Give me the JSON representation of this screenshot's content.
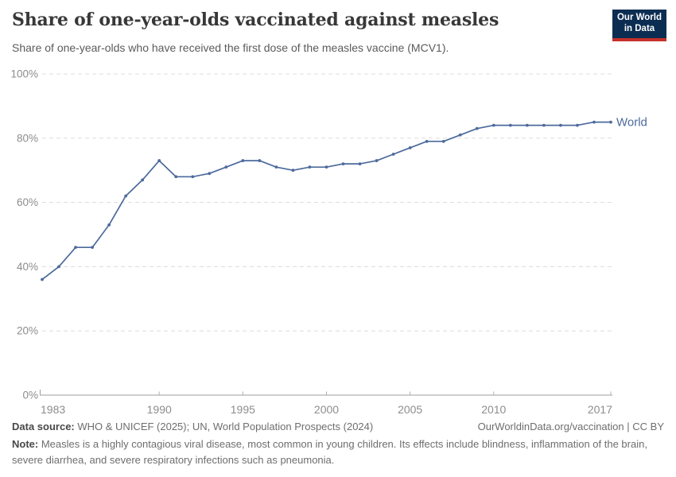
{
  "header": {
    "logo": {
      "line1": "Our World",
      "line2": "in Data",
      "bg_color": "#0c2d52",
      "bar_color": "#c4302b"
    }
  },
  "chart_data": {
    "type": "line",
    "title": "Share of one-year-olds vaccinated against measles",
    "subtitle": "Share of one-year-olds who have received the first dose of the measles vaccine (MCV1).",
    "x": [
      1983,
      1984,
      1985,
      1986,
      1987,
      1988,
      1989,
      1990,
      1991,
      1992,
      1993,
      1994,
      1995,
      1996,
      1997,
      1998,
      1999,
      2000,
      2001,
      2002,
      2003,
      2004,
      2005,
      2006,
      2007,
      2008,
      2009,
      2010,
      2011,
      2012,
      2013,
      2014,
      2015,
      2016,
      2017
    ],
    "series": [
      {
        "name": "World",
        "values": [
          36,
          40,
          46,
          46,
          53,
          62,
          67,
          73,
          68,
          68,
          69,
          71,
          73,
          73,
          71,
          70,
          71,
          71,
          72,
          72,
          73,
          75,
          77,
          79,
          79,
          81,
          83,
          84,
          84,
          84,
          84,
          84,
          84,
          85,
          85
        ]
      }
    ],
    "x_ticks": [
      1983,
      1990,
      1995,
      2000,
      2005,
      2010,
      2017
    ],
    "y_ticks": [
      0,
      20,
      40,
      60,
      80,
      100
    ],
    "y_tick_suffix": "%",
    "xlim": [
      1983,
      2017
    ],
    "ylim": [
      0,
      100
    ],
    "grid": "horizontal-dashed",
    "legend_position": "end-of-line-label",
    "line_color": "#4C6A9C",
    "axis_label_color": "#8d8d8d"
  },
  "footer": {
    "data_source_label": "Data source:",
    "data_source": "WHO & UNICEF (2025); UN, World Population Prospects (2024)",
    "link": "OurWorldinData.org/vaccination",
    "separator": "|",
    "license": "CC BY",
    "note_label": "Note:",
    "note": "Measles is a highly contagious viral disease, most common in young children. Its effects include blindness, inflammation of the brain, severe diarrhea, and severe respiratory infections such as pneumonia."
  }
}
